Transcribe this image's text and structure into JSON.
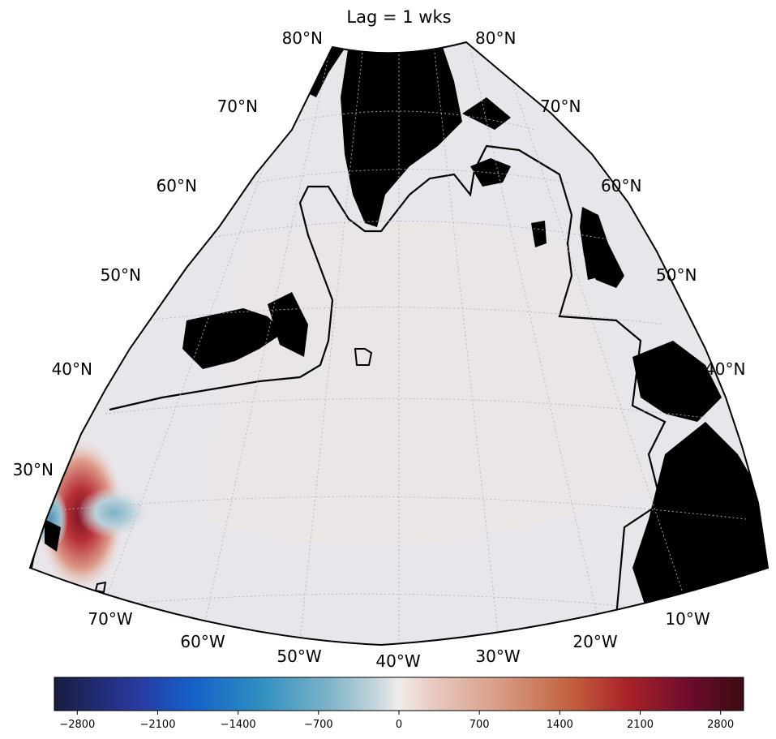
{
  "title": "Lag = 1 wks",
  "lat_labels": [
    "80°N",
    "70°N",
    "60°N",
    "50°N",
    "40°N",
    "30°N"
  ],
  "lon_labels": [
    "70°W",
    "60°W",
    "50°W",
    "40°W",
    "30°W",
    "20°W",
    "10°W"
  ],
  "colorbar": {
    "range": [
      -3000,
      3000
    ],
    "ticks": [
      "−2800",
      "−2100",
      "−1400",
      "−700",
      "0",
      "700",
      "1400",
      "2100",
      "2800"
    ],
    "colormap": "balance (blue–white–red)"
  },
  "colors": {
    "land": "#000000",
    "ocean_background": "#e8e6ea",
    "positive_max": "#7a1020",
    "negative_max": "#2a4fb0"
  }
}
